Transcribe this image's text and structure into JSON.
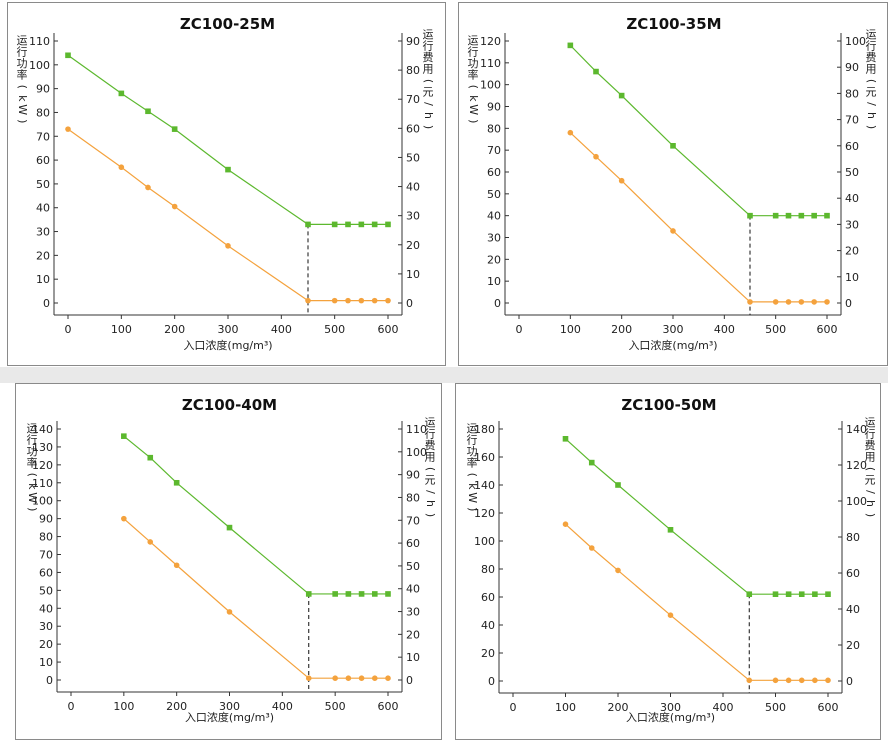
{
  "colors": {
    "power": "#5cb82e",
    "cost": "#f4a23d",
    "axis": "#333333",
    "frame": "#8a8a8a"
  },
  "chart_data": [
    {
      "type": "line",
      "title": "ZC100-25M",
      "xlabel": "入口浓度(mg/m³)",
      "ylabel": "运行功率(kW)",
      "y2label": "运行费用(元/h)",
      "xlim": [
        0,
        600
      ],
      "xticks": [
        0,
        100,
        200,
        300,
        400,
        500,
        600
      ],
      "ylim": [
        0,
        110
      ],
      "yticks": [
        0,
        10,
        20,
        30,
        40,
        50,
        60,
        70,
        80,
        90,
        100,
        110
      ],
      "y2lim": [
        0,
        90
      ],
      "y2ticks": [
        0,
        10,
        20,
        30,
        40,
        50,
        60,
        70,
        80,
        90
      ],
      "threshold_x": 450,
      "series": [
        {
          "axis": "left",
          "color": "#5cb82e",
          "x": [
            0,
            100,
            150,
            200,
            300,
            450,
            500,
            525,
            550,
            575,
            600
          ],
          "y": [
            104,
            88,
            80.5,
            73,
            56,
            33,
            33,
            33,
            33,
            33,
            33
          ]
        },
        {
          "axis": "left",
          "color": "#f4a23d",
          "x": [
            0,
            100,
            150,
            200,
            300,
            450,
            500,
            525,
            550,
            575,
            600
          ],
          "y": [
            73,
            57,
            48.5,
            40.5,
            24,
            1,
            1,
            1,
            1,
            1,
            1
          ]
        }
      ]
    },
    {
      "type": "line",
      "title": "ZC100-35M",
      "xlabel": "入口浓度(mg/m³)",
      "ylabel": "运行功率(kW)",
      "y2label": "运行费用(元/h)",
      "xlim": [
        0,
        600
      ],
      "xticks": [
        0,
        100,
        200,
        300,
        400,
        500,
        600
      ],
      "ylim": [
        0,
        120
      ],
      "yticks": [
        0,
        10,
        20,
        30,
        40,
        50,
        60,
        70,
        80,
        90,
        100,
        110,
        120
      ],
      "y2lim": [
        0,
        100
      ],
      "y2ticks": [
        0,
        10,
        20,
        30,
        40,
        50,
        60,
        70,
        80,
        90,
        100
      ],
      "threshold_x": 450,
      "series": [
        {
          "axis": "left",
          "color": "#5cb82e",
          "x": [
            100,
            150,
            200,
            300,
            450,
            500,
            525,
            550,
            575,
            600
          ],
          "y": [
            118,
            106,
            95,
            72,
            40,
            40,
            40,
            40,
            40,
            40
          ]
        },
        {
          "axis": "left",
          "color": "#f4a23d",
          "x": [
            100,
            150,
            200,
            300,
            450,
            500,
            525,
            550,
            575,
            600
          ],
          "y": [
            78,
            67,
            56,
            33,
            0.5,
            0.5,
            0.5,
            0.5,
            0.5,
            0.5
          ]
        }
      ]
    },
    {
      "type": "line",
      "title": "ZC100-40M",
      "xlabel": "入口浓度(mg/m³)",
      "ylabel": "运行功率(kW)",
      "y2label": "运行费用(元/h)",
      "xlim": [
        0,
        600
      ],
      "xticks": [
        0,
        100,
        200,
        300,
        400,
        500,
        600
      ],
      "ylim": [
        0,
        140
      ],
      "yticks": [
        0,
        10,
        20,
        30,
        40,
        50,
        60,
        70,
        80,
        90,
        100,
        110,
        120,
        130,
        140
      ],
      "y2lim": [
        0,
        110
      ],
      "y2ticks": [
        0,
        10,
        20,
        30,
        40,
        50,
        60,
        70,
        80,
        90,
        100,
        110
      ],
      "threshold_x": 450,
      "series": [
        {
          "axis": "left",
          "color": "#5cb82e",
          "x": [
            100,
            150,
            200,
            300,
            450,
            500,
            525,
            550,
            575,
            600
          ],
          "y": [
            136,
            124,
            110,
            85,
            48,
            48,
            48,
            48,
            48,
            48
          ]
        },
        {
          "axis": "left",
          "color": "#f4a23d",
          "x": [
            100,
            150,
            200,
            300,
            450,
            500,
            525,
            550,
            575,
            600
          ],
          "y": [
            90,
            77,
            64,
            38,
            1,
            1,
            1,
            1,
            1,
            1
          ]
        }
      ]
    },
    {
      "type": "line",
      "title": "ZC100-50M",
      "xlabel": "入口浓度(mg/m³)",
      "ylabel": "运行功率(kW)",
      "y2label": "运行费用(元/h)",
      "xlim": [
        0,
        600
      ],
      "xticks": [
        0,
        100,
        200,
        300,
        400,
        500,
        600
      ],
      "ylim": [
        0,
        180
      ],
      "yticks": [
        0,
        20,
        40,
        60,
        80,
        100,
        120,
        140,
        160,
        180
      ],
      "y2lim": [
        0,
        140
      ],
      "y2ticks": [
        0,
        20,
        40,
        60,
        80,
        100,
        120,
        140
      ],
      "threshold_x": 450,
      "series": [
        {
          "axis": "left",
          "color": "#5cb82e",
          "x": [
            100,
            150,
            200,
            300,
            450,
            500,
            525,
            550,
            575,
            600
          ],
          "y": [
            173,
            156,
            140,
            108,
            62,
            62,
            62,
            62,
            62,
            62
          ]
        },
        {
          "axis": "left",
          "color": "#f4a23d",
          "x": [
            100,
            150,
            200,
            300,
            450,
            500,
            525,
            550,
            575,
            600
          ],
          "y": [
            112,
            95,
            79,
            47,
            0.5,
            0.5,
            0.5,
            0.5,
            0.5,
            0.5
          ]
        }
      ]
    }
  ]
}
